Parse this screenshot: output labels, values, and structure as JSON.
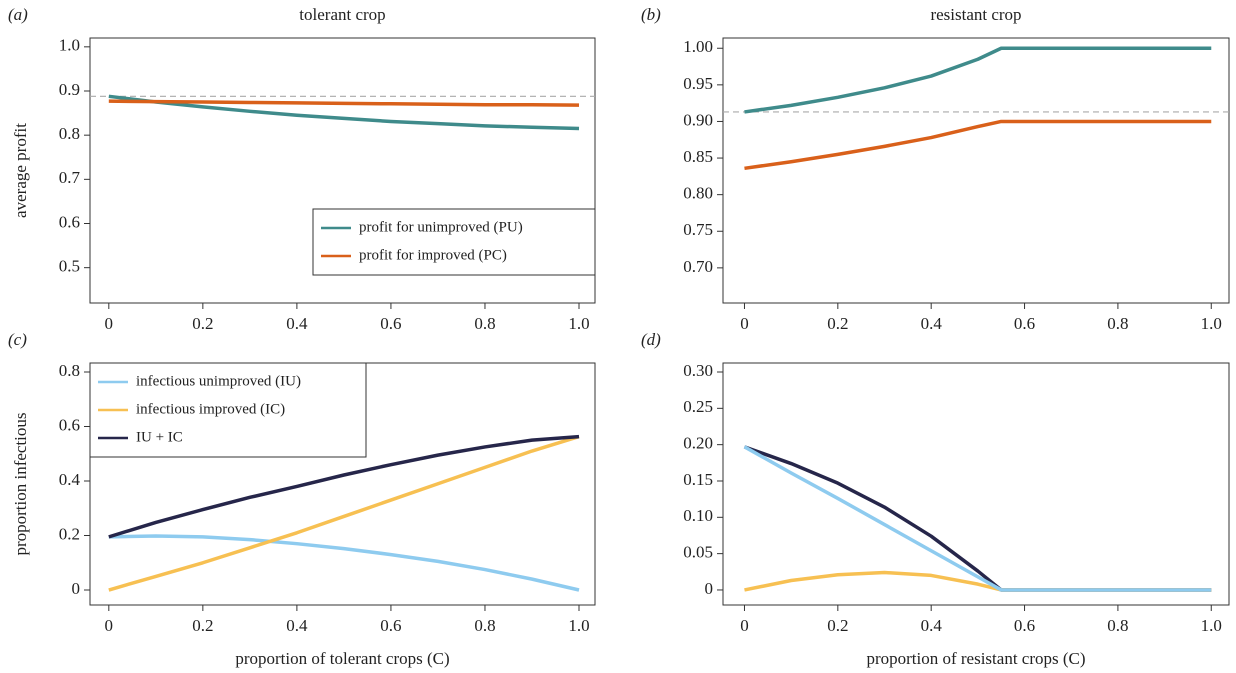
{
  "chart_data": [
    {
      "type": "line",
      "panel_label": "(a)",
      "title": "tolerant crop",
      "ylabel": "average profit",
      "x": [
        0,
        0.1,
        0.2,
        0.3,
        0.4,
        0.5,
        0.6,
        0.7,
        0.8,
        0.9,
        1.0
      ],
      "series": [
        {
          "name": "profit for unimproved (PU)",
          "color": "#3f8b8b",
          "values": [
            0.888,
            0.875,
            0.864,
            0.854,
            0.845,
            0.838,
            0.831,
            0.826,
            0.821,
            0.818,
            0.815
          ]
        },
        {
          "name": "profit for improved (PC)",
          "color": "#d9601a",
          "values": [
            0.877,
            0.876,
            0.875,
            0.874,
            0.873,
            0.872,
            0.871,
            0.87,
            0.869,
            0.869,
            0.868
          ]
        }
      ],
      "reference_line": 0.888,
      "legend": "lower right",
      "xlim": [
        -0.04,
        1.034
      ],
      "xticks": [
        0,
        0.2,
        0.4,
        0.6,
        0.8,
        {
          "value": 1,
          "label": "1.0"
        }
      ],
      "ylim": [
        0.42,
        1.02
      ],
      "yticks": [
        0.5,
        0.6,
        0.7,
        0.8,
        0.9,
        {
          "value": 1,
          "label": "1.0"
        }
      ]
    },
    {
      "type": "line",
      "panel_label": "(b)",
      "title": "resistant crop",
      "x": [
        0,
        0.1,
        0.2,
        0.3,
        0.4,
        0.5,
        0.55,
        0.6,
        0.7,
        0.8,
        0.9,
        1.0
      ],
      "series": [
        {
          "color": "#3f8b8b",
          "values": [
            0.913,
            0.922,
            0.933,
            0.946,
            0.962,
            0.985,
            1.0,
            1.0,
            1.0,
            1.0,
            1.0,
            1.0
          ]
        },
        {
          "color": "#d9601a",
          "values": [
            0.836,
            0.845,
            0.855,
            0.866,
            0.878,
            0.893,
            0.9,
            0.9,
            0.9,
            0.9,
            0.9,
            0.9
          ]
        }
      ],
      "reference_line": 0.913,
      "xlim": [
        -0.046,
        1.038
      ],
      "xticks": [
        0,
        0.2,
        0.4,
        0.6,
        0.8,
        {
          "value": 1,
          "label": "1.0"
        }
      ],
      "ylim": [
        0.652,
        1.014
      ],
      "yticks": [
        {
          "value": 0.7,
          "label": "0.70"
        },
        0.75,
        {
          "value": 0.8,
          "label": "0.80"
        },
        0.85,
        {
          "value": 0.9,
          "label": "0.90"
        },
        0.95,
        {
          "value": 1,
          "label": "1.00"
        }
      ]
    },
    {
      "type": "line",
      "panel_label": "(c)",
      "ylabel": "proportion infectious",
      "xlabel": "proportion of tolerant crops (C)",
      "x": [
        0,
        0.1,
        0.2,
        0.3,
        0.4,
        0.5,
        0.6,
        0.7,
        0.8,
        0.9,
        1.0
      ],
      "series": [
        {
          "name": "infectious unimproved (IU)",
          "color": "#8ecbef",
          "values": [
            0.195,
            0.198,
            0.195,
            0.185,
            0.17,
            0.152,
            0.13,
            0.105,
            0.075,
            0.04,
            0.0
          ]
        },
        {
          "name": "infectious improved (IC)",
          "color": "#f7c052",
          "values": [
            0,
            0.05,
            0.1,
            0.155,
            0.21,
            0.27,
            0.33,
            0.39,
            0.45,
            0.51,
            0.563
          ]
        },
        {
          "name": "IU + IC",
          "color": "#26264a",
          "values": [
            0.195,
            0.248,
            0.295,
            0.34,
            0.38,
            0.422,
            0.46,
            0.495,
            0.525,
            0.55,
            0.563
          ]
        }
      ],
      "legend": "upper left",
      "xlim": [
        -0.04,
        1.034
      ],
      "xticks": [
        0,
        0.2,
        0.4,
        0.6,
        0.8,
        {
          "value": 1,
          "label": "1.0"
        }
      ],
      "ylim": [
        -0.055,
        0.833
      ],
      "yticks": [
        0,
        0.2,
        0.4,
        0.6,
        0.8
      ]
    },
    {
      "type": "line",
      "panel_label": "(d)",
      "xlabel": "proportion of resistant crops (C)",
      "x": [
        0,
        0.1,
        0.2,
        0.3,
        0.4,
        0.5,
        0.55,
        0.6,
        0.7,
        0.8,
        0.9,
        1.0
      ],
      "series": [
        {
          "color": "#26264a",
          "values": [
            0.197,
            0.174,
            0.147,
            0.114,
            0.074,
            0.026,
            0,
            0,
            0,
            0,
            0,
            0
          ]
        },
        {
          "color": "#f7c052",
          "values": [
            0,
            0.013,
            0.021,
            0.024,
            0.02,
            0.008,
            0,
            0,
            0,
            0,
            0,
            0
          ]
        },
        {
          "color": "#8ecbef",
          "values": [
            0.197,
            0.161,
            0.126,
            0.09,
            0.054,
            0.018,
            0,
            0,
            0,
            0,
            0,
            0
          ]
        }
      ],
      "xlim": [
        -0.046,
        1.038
      ],
      "xticks": [
        0,
        0.2,
        0.4,
        0.6,
        0.8,
        {
          "value": 1,
          "label": "1.0"
        }
      ],
      "ylim": [
        -0.0207,
        0.3124
      ],
      "yticks": [
        0,
        0.05,
        {
          "value": 0.1,
          "label": "0.10"
        },
        0.15,
        {
          "value": 0.2,
          "label": "0.20"
        },
        0.25,
        {
          "value": 0.3,
          "label": "0.30"
        }
      ]
    }
  ]
}
